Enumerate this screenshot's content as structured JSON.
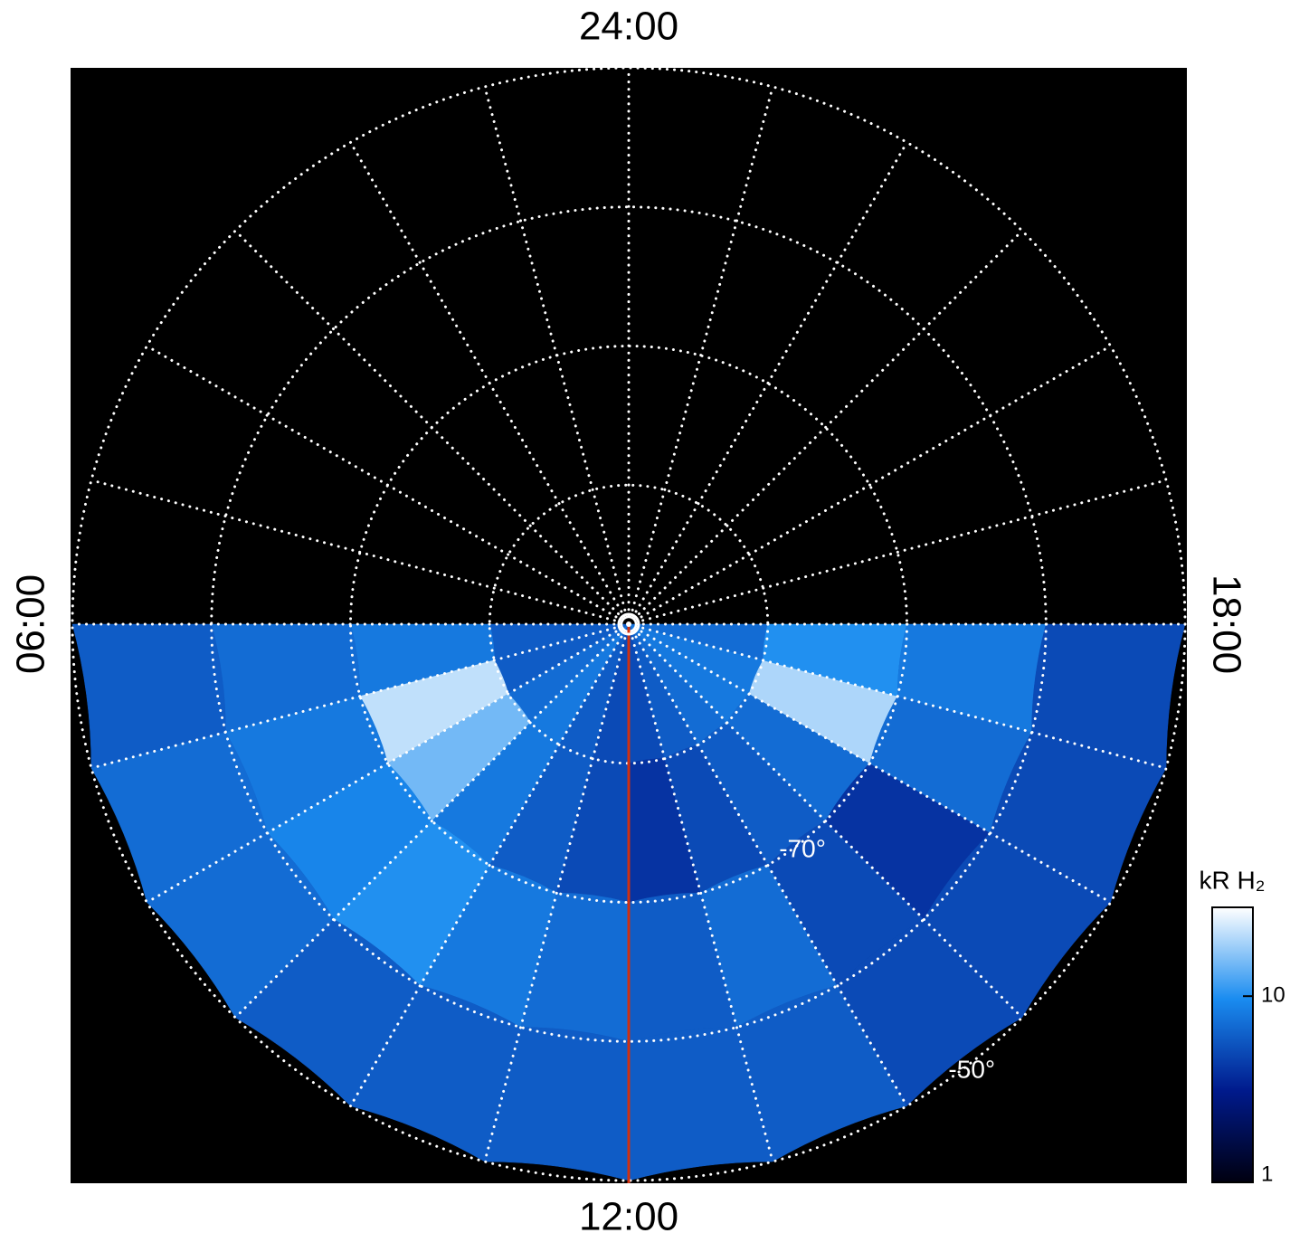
{
  "chart_data": {
    "type": "polar-image",
    "lt_ticks": [
      {
        "value": 0,
        "label": "24:00"
      },
      {
        "value": 6,
        "label": "06:00"
      },
      {
        "value": 12,
        "label": "12:00"
      },
      {
        "value": 18,
        "label": "18:00"
      }
    ],
    "lt_gridlines": [
      0,
      1,
      2,
      3,
      4,
      5,
      6,
      7,
      8,
      9,
      10,
      11,
      12,
      13,
      14,
      15,
      16,
      17,
      18,
      19,
      20,
      21,
      22,
      23
    ],
    "rlim": [
      -90,
      -50
    ],
    "lat_rings": [
      -80,
      -70,
      -60,
      -50
    ],
    "lat_labels": [
      {
        "value": -70,
        "label": "-70°"
      },
      {
        "value": -50,
        "label": "-50°"
      }
    ],
    "lt_bins": [
      6,
      7,
      8,
      9,
      10,
      11,
      12,
      13,
      14,
      15,
      16,
      17,
      18
    ],
    "lat_bins": [
      -90,
      -80,
      -70,
      -60,
      -50
    ],
    "values": [
      [
        6,
        6,
        7,
        8,
        6,
        5,
        5,
        6,
        7,
        8,
        8,
        7
      ],
      [
        8,
        22,
        15,
        8,
        6,
        5,
        4,
        5,
        6,
        7,
        20,
        10
      ],
      [
        7,
        8,
        9,
        10,
        8,
        7,
        6,
        7,
        5,
        4,
        7,
        8
      ],
      [
        6,
        7,
        7,
        6,
        6,
        6,
        6,
        6,
        5,
        5,
        5,
        5
      ]
    ],
    "colormap": [
      "#000010",
      "#001a8c",
      "#1a8cf0",
      "#ffffff"
    ],
    "colorbar_label": "kR H₂",
    "clim": [
      1,
      30
    ],
    "log_scale": true,
    "cticks": [
      1,
      10
    ]
  }
}
